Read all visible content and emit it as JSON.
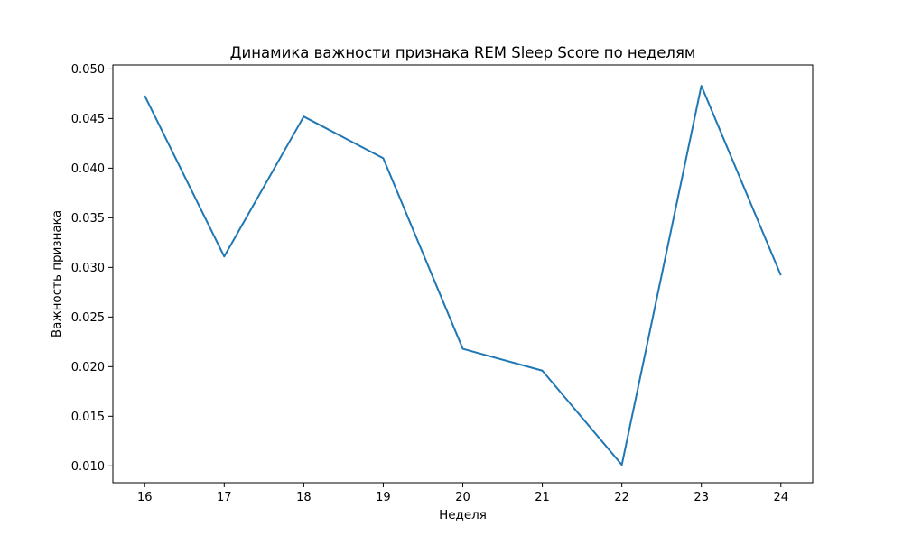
{
  "chart_data": {
    "type": "line",
    "title": "Динамика важности признака REM Sleep Score по неделям",
    "xlabel": "Неделя",
    "ylabel": "Важность признака",
    "x": [
      16,
      17,
      18,
      19,
      20,
      21,
      22,
      23,
      24
    ],
    "x_tick_labels": [
      "16",
      "17",
      "18",
      "19",
      "20",
      "21",
      "22",
      "23",
      "24"
    ],
    "y_ticks": [
      0.01,
      0.015,
      0.02,
      0.025,
      0.03,
      0.035,
      0.04,
      0.045,
      0.05
    ],
    "y_tick_labels": [
      "0.010",
      "0.015",
      "0.020",
      "0.025",
      "0.030",
      "0.035",
      "0.040",
      "0.045",
      "0.050"
    ],
    "xlim": [
      15.6,
      24.4
    ],
    "ylim": [
      0.0083,
      0.0504
    ],
    "grid": false,
    "series": [
      {
        "color": "#1f77b4",
        "values": [
          0.0473,
          0.0311,
          0.0452,
          0.041,
          0.0218,
          0.0196,
          0.0101,
          0.0483,
          0.0292
        ]
      }
    ]
  }
}
